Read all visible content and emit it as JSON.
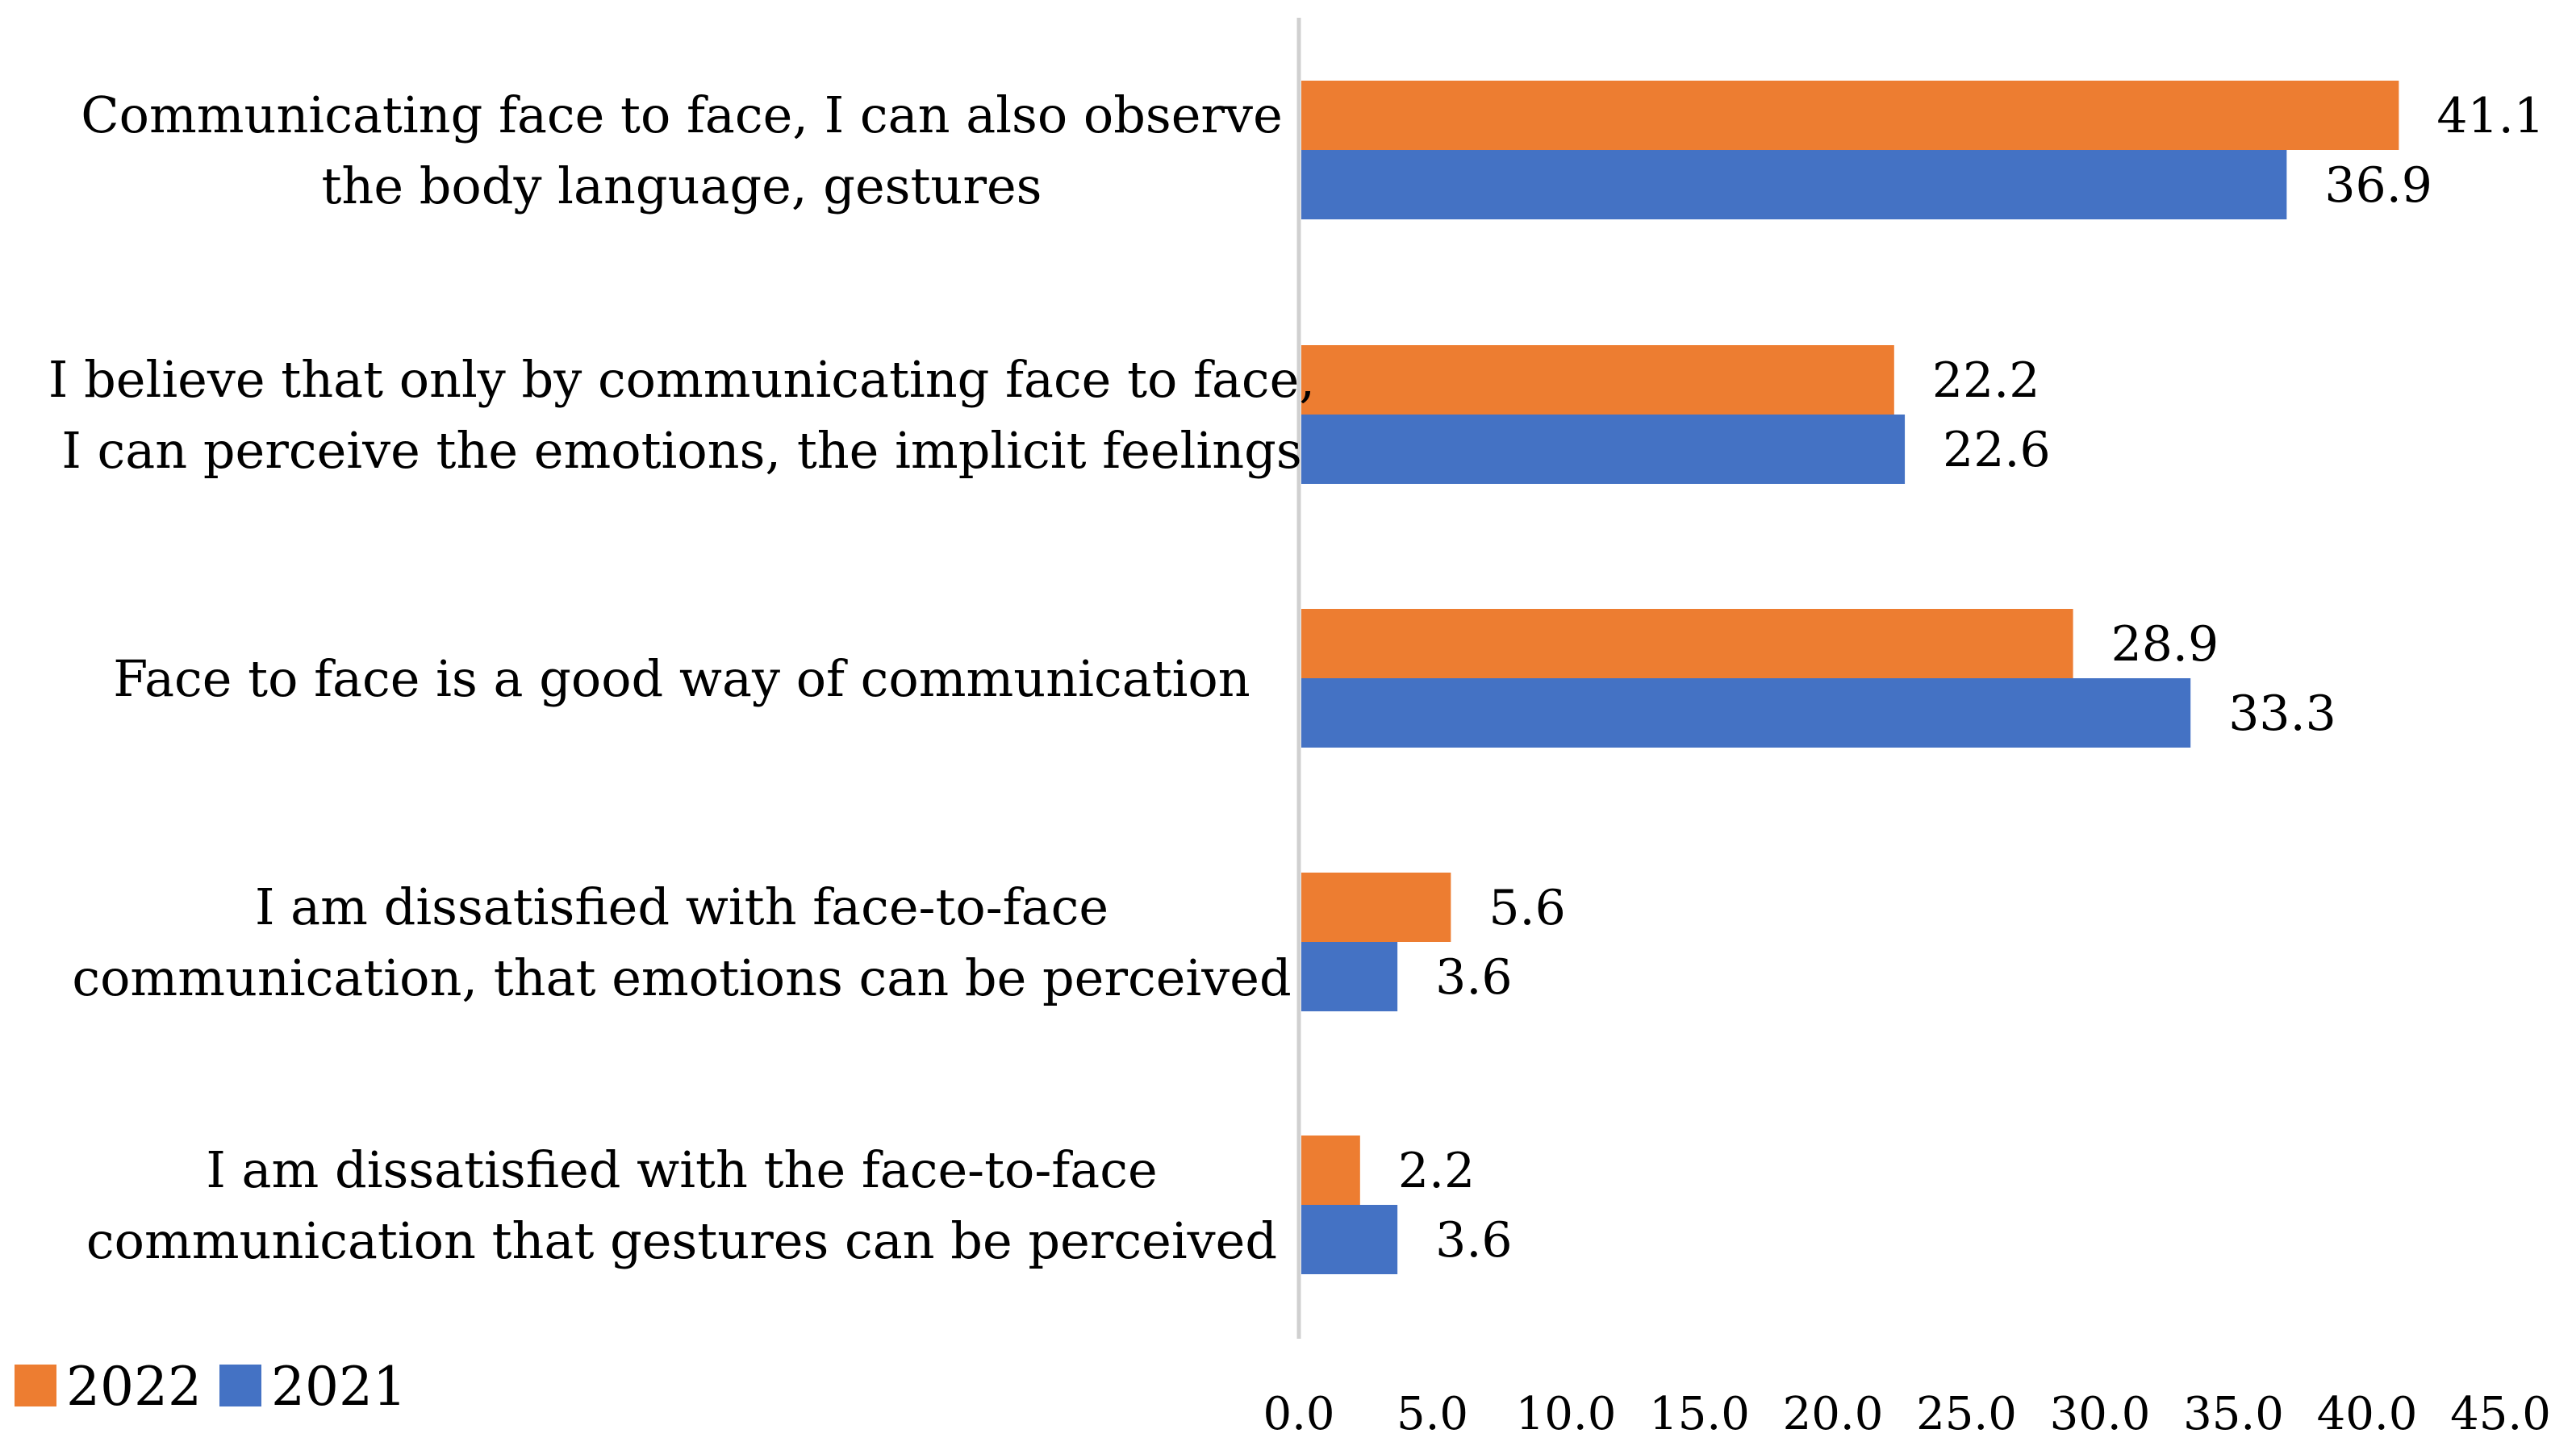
{
  "chart_data": {
    "type": "bar",
    "orientation": "horizontal",
    "categories": [
      [
        "Communicating face to face, I can also observe",
        "the body language, gestures"
      ],
      [
        "I believe that only by communicating face to face,",
        "I can perceive the emotions, the implicit feelings"
      ],
      [
        "Face to face is a good way of communication"
      ],
      [
        "I am dissatisfied with face-to-face",
        "communication, that emotions can be perceived"
      ],
      [
        "I am dissatisfied with the face-to-face",
        "communication that gestures can be perceived"
      ]
    ],
    "series": [
      {
        "name": "2022",
        "color": "#ED7D31",
        "values": [
          41.1,
          22.2,
          28.9,
          5.6,
          2.2
        ],
        "labels": [
          "41.1",
          "22.2",
          "28.9",
          "5.6",
          "2.2"
        ]
      },
      {
        "name": "2021",
        "color": "#4472C4",
        "values": [
          36.9,
          22.6,
          33.3,
          3.6,
          3.6
        ],
        "labels": [
          "36.9",
          "22.6",
          "33.3",
          "3.6",
          "3.6"
        ]
      }
    ],
    "xlim": [
      0,
      45
    ],
    "xticks": [
      "0.0",
      "5.0",
      "10.0",
      "15.0",
      "20.0",
      "25.0",
      "30.0",
      "35.0",
      "40.0",
      "45.0"
    ],
    "legend": {
      "placement": "bottom-left",
      "entries": [
        "2022",
        "2021"
      ]
    },
    "grid": false
  }
}
